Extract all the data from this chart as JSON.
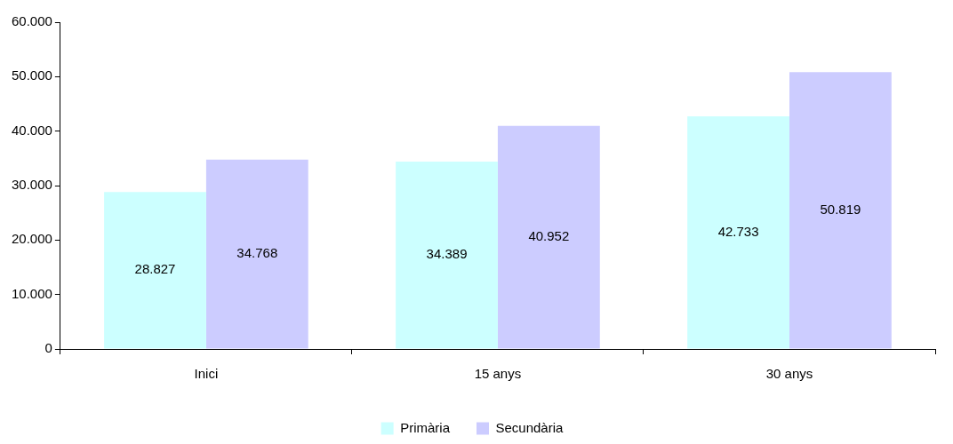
{
  "chart_data": {
    "type": "bar",
    "categories": [
      "Inici",
      "15 anys",
      "30 anys"
    ],
    "series": [
      {
        "name": "Primària",
        "color": "#ccffff",
        "values": [
          28827,
          34389,
          42733
        ],
        "value_labels": [
          "28.827",
          "34.389",
          "42.733"
        ]
      },
      {
        "name": "Secundària",
        "color": "#ccccff",
        "values": [
          34768,
          40952,
          50819
        ],
        "value_labels": [
          "34.768",
          "40.952",
          "50.819"
        ]
      }
    ],
    "ylim": [
      0,
      60000
    ],
    "yticks": [
      {
        "value": 0,
        "label": "0"
      },
      {
        "value": 10000,
        "label": "10.000"
      },
      {
        "value": 20000,
        "label": "20.000"
      },
      {
        "value": 30000,
        "label": "30.000"
      },
      {
        "value": 40000,
        "label": "40.000"
      },
      {
        "value": 50000,
        "label": "50.000"
      },
      {
        "value": 60000,
        "label": "60.000"
      }
    ],
    "grid": false,
    "legend": "bottom"
  }
}
